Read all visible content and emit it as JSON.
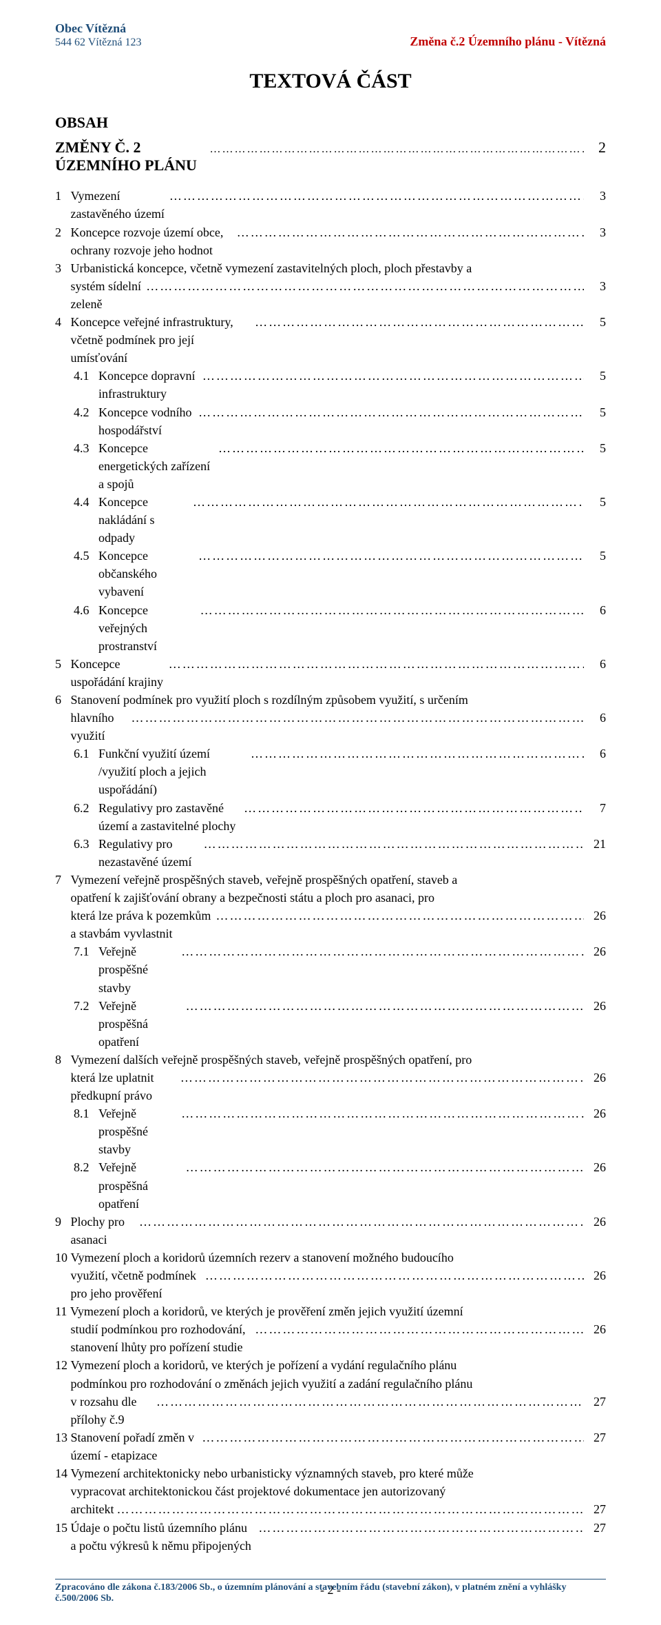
{
  "header": {
    "org": "Obec Vítězná",
    "address": "544 62  Vítězná  123",
    "doc_ref": "Změna č.2  Územního plánu - Vítězná"
  },
  "title": "TEXTOVÁ ČÁST",
  "obsah": "OBSAH",
  "subheading": "ZMĚNY Č. 2 ÚZEMNÍHO PLÁNU",
  "subheading_page": "2",
  "toc": [
    {
      "n": "1",
      "t": "Vymezení zastavěného území",
      "p": "3",
      "lvl": 1
    },
    {
      "n": "2",
      "t": "Koncepce rozvoje území obce, ochrany rozvoje jeho hodnot",
      "p": "3",
      "lvl": 1
    },
    {
      "n": "3",
      "t": "Urbanistická koncepce, včetně vymezení zastavitelných ploch, ploch přestavby a systém sídelní zeleně",
      "p": "3",
      "lvl": 1
    },
    {
      "n": "4",
      "t": "Koncepce veřejné infrastruktury, včetně podmínek pro její umísťování",
      "p": "5",
      "lvl": 1
    },
    {
      "n": "4.1",
      "t": "Koncepce dopravní infrastruktury",
      "p": "5",
      "lvl": 2
    },
    {
      "n": "4.2",
      "t": "Koncepce vodního hospodářství",
      "p": "5",
      "lvl": 2
    },
    {
      "n": "4.3",
      "t": "Koncepce energetických zařízení a spojů",
      "p": "5",
      "lvl": 2
    },
    {
      "n": "4.4",
      "t": "Koncepce nakládání s odpady",
      "p": "5",
      "lvl": 2
    },
    {
      "n": "4.5",
      "t": "Koncepce občanského vybavení",
      "p": "5",
      "lvl": 2
    },
    {
      "n": "4.6",
      "t": "Koncepce veřejných prostranství",
      "p": "6",
      "lvl": 2
    },
    {
      "n": "5",
      "t": "Koncepce uspořádání krajiny",
      "p": "6",
      "lvl": 1
    },
    {
      "n": "6",
      "t": "Stanovení podmínek pro využití ploch s rozdílným způsobem využití, s určením hlavního využití",
      "p": "6",
      "lvl": 1
    },
    {
      "n": "6.1",
      "t": "Funkční využití území /využití ploch a jejich uspořádání)",
      "p": "6",
      "lvl": 2
    },
    {
      "n": "6.2",
      "t": "Regulativy pro zastavěné území a zastavitelné plochy",
      "p": "7",
      "lvl": 2
    },
    {
      "n": "6.3",
      "t": "Regulativy pro nezastavěné území",
      "p": "21",
      "lvl": 2
    },
    {
      "n": "7",
      "t": "Vymezení veřejně prospěšných staveb, veřejně prospěšných opatření, staveb a opatření k zajišťování obrany a bezpečnosti státu a ploch pro asanaci, pro která lze práva k pozemkům a stavbám vyvlastnit",
      "p": "26",
      "lvl": 1
    },
    {
      "n": "7.1",
      "t": "Veřejně prospěšné stavby",
      "p": "26",
      "lvl": 2
    },
    {
      "n": "7.2",
      "t": "Veřejně prospěšná opatření",
      "p": "26",
      "lvl": 2
    },
    {
      "n": "8",
      "t": "Vymezení dalších veřejně prospěšných staveb, veřejně prospěšných opatření, pro která lze uplatnit předkupní právo",
      "p": "26",
      "lvl": 1
    },
    {
      "n": "8.1",
      "t": "Veřejně prospěšné stavby",
      "p": "26",
      "lvl": 2
    },
    {
      "n": "8.2",
      "t": "Veřejně prospěšná opatření",
      "p": "26",
      "lvl": 2
    },
    {
      "n": "9",
      "t": "Plochy pro asanaci",
      "p": "26",
      "lvl": 1
    },
    {
      "n": "10",
      "t": "Vymezení ploch a koridorů územních rezerv a stanovení možného budoucího využití, včetně podmínek pro jeho prověření",
      "p": "26",
      "lvl": 1
    },
    {
      "n": "11",
      "t": "Vymezení ploch a koridorů, ve kterých je prověření změn jejich využití územní studií podmínkou pro rozhodování, stanovení lhůty pro pořízení studie",
      "p": "26",
      "lvl": 1
    },
    {
      "n": "12",
      "t": "Vymezení ploch a koridorů, ve kterých je pořízení a vydání regulačního plánu podmínkou pro rozhodování o změnách jejich využití a zadání regulačního plánu v rozsahu dle přílohy č.9",
      "p": "27",
      "lvl": 1
    },
    {
      "n": "13",
      "t": "Stanovení pořadí změn v území - etapizace",
      "p": "27",
      "lvl": 1
    },
    {
      "n": "14",
      "t": "Vymezení architektonicky nebo urbanisticky významných staveb, pro které může vypracovat architektonickou část projektové dokumentace jen autorizovaný architekt",
      "p": "27",
      "lvl": 1
    },
    {
      "n": "15",
      "t": "Údaje o počtu listů územního plánu a počtu výkresů k němu připojených",
      "p": "27",
      "lvl": 1
    }
  ],
  "page_number": "- 2 -",
  "footer": "Zpracováno dle zákona č.183/2006 Sb., o územním plánování a stavebním řádu (stavební zákon), v platném znění a vyhlášky č.500/2006 Sb.",
  "wrap_width_lvl1": 78,
  "wrap_width_lvl2": 70,
  "colors": {
    "header_blue": "#1f4e79",
    "header_red": "#c00000",
    "text": "#000000",
    "background": "#ffffff"
  }
}
